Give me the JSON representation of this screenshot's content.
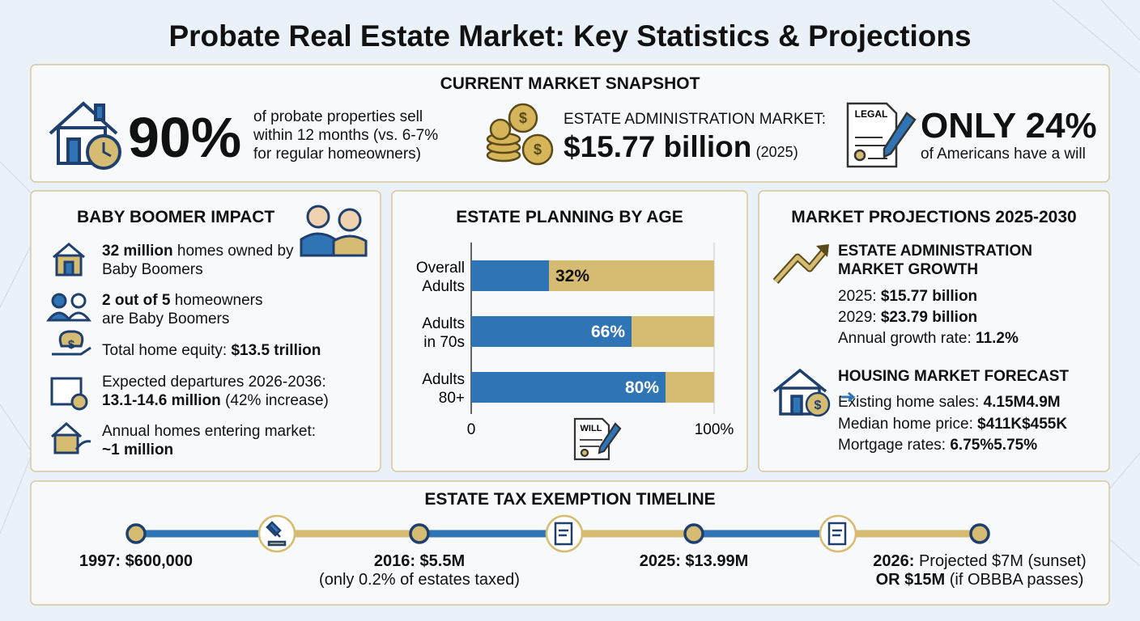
{
  "title": "Probate Real Estate Market: Key Statistics & Projections",
  "snapshot": {
    "heading": "CURRENT MARKET SNAPSHOT",
    "stat1": {
      "big": "90%",
      "text": "of probate properties sell within 12 months (vs. 6-7% for regular homeowners)"
    },
    "stat2": {
      "label": "ESTATE ADMINISTRATION MARKET:",
      "big": "$15.77 billion",
      "note": "(2025)"
    },
    "stat3": {
      "icon": "LEGAL",
      "big": "ONLY 24%",
      "text": "of Americans have a will"
    }
  },
  "boomer": {
    "heading": "BABY BOOMER IMPACT",
    "items": [
      [
        "32 million",
        " homes owned by Baby Boomers"
      ],
      [
        "2 out of 5",
        " homeowners are Baby Boomers"
      ],
      [
        "Total home equity: ",
        "$13.5 trillion"
      ],
      [
        "Expected departures 2026-2036:",
        "13.1-14.6 million",
        " (42% increase)"
      ],
      [
        "Annual homes entering market:",
        "~1 million"
      ]
    ]
  },
  "chart_data": {
    "type": "bar",
    "orientation": "horizontal",
    "title": "ESTATE PLANNING BY AGE",
    "categories": [
      [
        "Overall",
        "Adults"
      ],
      [
        "Adults",
        "in 70s"
      ],
      [
        "Adults",
        "80+"
      ]
    ],
    "values": [
      32,
      66,
      80
    ],
    "value_labels": [
      "32%",
      "66%",
      "80%"
    ],
    "color": "#2f74b5",
    "track_color": "#d6bc72",
    "xlim": [
      0,
      100
    ],
    "xticks": [
      0,
      {
        "value": 100,
        "label": "100%"
      }
    ],
    "grid": true,
    "icon": "WILL"
  },
  "projections": {
    "heading": "MARKET PROJECTIONS 2025-2030",
    "growth": {
      "title": "ESTATE ADMINISTRATION MARKET GROWTH",
      "lines": [
        [
          "2025: ",
          "$15.77 billion"
        ],
        [
          "2029: ",
          "$23.79 billion"
        ],
        [
          "Annual growth rate: ",
          "11.2%"
        ]
      ]
    },
    "housing": {
      "title": "HOUSING MARKET FORECAST",
      "lines": [
        [
          "Existing home sales: ",
          "4.15M",
          "4.9M"
        ],
        [
          "Median home price: ",
          "$411K",
          "$455K"
        ],
        [
          "Mortgage rates: ",
          "6.75%",
          "5.75%"
        ]
      ]
    }
  },
  "timeline": {
    "heading": "ESTATE TAX EXEMPTION TIMELINE",
    "events": [
      [
        "1997: $600,000"
      ],
      [
        "2016: $5.5M",
        "(only 0.2% of estates taxed)"
      ],
      [
        "2025: $13.99M"
      ],
      [
        "2026:",
        " Projected $7M (sunset)",
        "OR $15M",
        " (if OBBBA passes)"
      ]
    ]
  }
}
